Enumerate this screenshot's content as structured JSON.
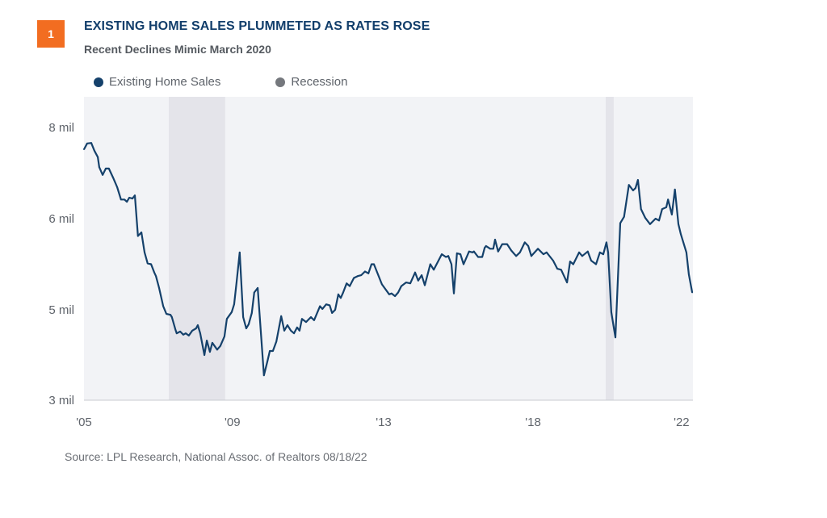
{
  "badge": "1",
  "title": "EXISTING HOME SALES PLUMMETED AS RATES ROSE",
  "subtitle": "Recent Declines Mimic March 2020",
  "source": "Source: LPL Research, National Assoc. of Realtors  08/18/22",
  "colors": {
    "series": "#15416b",
    "recession": "#e4e4ea",
    "recession_legend": "#75787d",
    "plot_bg": "#f2f3f6",
    "badge": "#f26d21"
  },
  "chart_data": {
    "type": "line",
    "title": "EXISTING HOME SALES PLUMMETED AS RATES ROSE",
    "subtitle": "Recent Declines Mimic March 2020",
    "legend": {
      "position": "top-left",
      "entries": [
        "Existing Home Sales",
        "Recession"
      ]
    },
    "grid": false,
    "xlim": [
      2005.0,
      2022.6
    ],
    "x_ticks": [
      {
        "value": 2005.0,
        "label": "'05"
      },
      {
        "value": 2009.29,
        "label": "'09"
      },
      {
        "value": 2013.66,
        "label": "'13"
      },
      {
        "value": 2017.98,
        "label": "'18"
      },
      {
        "value": 2022.27,
        "label": "'22"
      }
    ],
    "y_ticks": [
      {
        "value": 8,
        "label": "8 mil"
      },
      {
        "value": 6,
        "label": "6 mil"
      },
      {
        "value": 5,
        "label": "5 mil"
      },
      {
        "value": 3,
        "label": "3 mil"
      }
    ],
    "recessions": [
      [
        2007.45,
        2009.08
      ],
      [
        2020.08,
        2020.31
      ]
    ],
    "series": [
      {
        "name": "Existing Home Sales",
        "points": [
          [
            2005.0,
            7.52
          ],
          [
            2005.09,
            7.65
          ],
          [
            2005.21,
            7.66
          ],
          [
            2005.3,
            7.49
          ],
          [
            2005.4,
            7.35
          ],
          [
            2005.44,
            7.13
          ],
          [
            2005.54,
            6.96
          ],
          [
            2005.63,
            7.1
          ],
          [
            2005.72,
            7.1
          ],
          [
            2005.84,
            6.9
          ],
          [
            2005.96,
            6.69
          ],
          [
            2006.07,
            6.42
          ],
          [
            2006.17,
            6.42
          ],
          [
            2006.24,
            6.37
          ],
          [
            2006.31,
            6.46
          ],
          [
            2006.4,
            6.44
          ],
          [
            2006.47,
            6.51
          ],
          [
            2006.56,
            5.81
          ],
          [
            2006.66,
            5.85
          ],
          [
            2006.75,
            5.63
          ],
          [
            2006.84,
            5.51
          ],
          [
            2006.94,
            5.5
          ],
          [
            2007.03,
            5.41
          ],
          [
            2007.08,
            5.37
          ],
          [
            2007.17,
            5.24
          ],
          [
            2007.29,
            5.04
          ],
          [
            2007.38,
            4.91
          ],
          [
            2007.5,
            4.89
          ],
          [
            2007.54,
            4.84
          ],
          [
            2007.64,
            4.57
          ],
          [
            2007.68,
            4.48
          ],
          [
            2007.78,
            4.52
          ],
          [
            2007.87,
            4.45
          ],
          [
            2007.94,
            4.48
          ],
          [
            2008.03,
            4.43
          ],
          [
            2008.13,
            4.54
          ],
          [
            2008.24,
            4.59
          ],
          [
            2008.29,
            4.66
          ],
          [
            2008.36,
            4.48
          ],
          [
            2008.48,
            4.0
          ],
          [
            2008.55,
            4.32
          ],
          [
            2008.64,
            4.07
          ],
          [
            2008.71,
            4.27
          ],
          [
            2008.85,
            4.12
          ],
          [
            2008.94,
            4.2
          ],
          [
            2009.06,
            4.41
          ],
          [
            2009.13,
            4.8
          ],
          [
            2009.27,
            4.95
          ],
          [
            2009.34,
            5.06
          ],
          [
            2009.41,
            5.3
          ],
          [
            2009.5,
            5.63
          ],
          [
            2009.6,
            4.84
          ],
          [
            2009.69,
            4.59
          ],
          [
            2009.76,
            4.68
          ],
          [
            2009.85,
            4.93
          ],
          [
            2009.92,
            5.19
          ],
          [
            2010.02,
            5.24
          ],
          [
            2010.2,
            3.55
          ],
          [
            2010.3,
            3.86
          ],
          [
            2010.37,
            4.09
          ],
          [
            2010.46,
            4.09
          ],
          [
            2010.56,
            4.3
          ],
          [
            2010.7,
            4.86
          ],
          [
            2010.79,
            4.54
          ],
          [
            2010.88,
            4.66
          ],
          [
            2010.98,
            4.54
          ],
          [
            2011.07,
            4.48
          ],
          [
            2011.16,
            4.61
          ],
          [
            2011.23,
            4.54
          ],
          [
            2011.3,
            4.8
          ],
          [
            2011.42,
            4.73
          ],
          [
            2011.56,
            4.84
          ],
          [
            2011.65,
            4.77
          ],
          [
            2011.82,
            5.04
          ],
          [
            2011.89,
            5.01
          ],
          [
            2012.0,
            5.06
          ],
          [
            2012.1,
            5.05
          ],
          [
            2012.17,
            4.93
          ],
          [
            2012.26,
            5.0
          ],
          [
            2012.35,
            5.17
          ],
          [
            2012.42,
            5.13
          ],
          [
            2012.49,
            5.19
          ],
          [
            2012.59,
            5.29
          ],
          [
            2012.68,
            5.26
          ],
          [
            2012.8,
            5.35
          ],
          [
            2012.91,
            5.37
          ],
          [
            2013.01,
            5.38
          ],
          [
            2013.12,
            5.42
          ],
          [
            2013.22,
            5.4
          ],
          [
            2013.31,
            5.5
          ],
          [
            2013.38,
            5.5
          ],
          [
            2013.61,
            5.28
          ],
          [
            2013.82,
            5.17
          ],
          [
            2013.89,
            5.18
          ],
          [
            2013.99,
            5.15
          ],
          [
            2014.08,
            5.19
          ],
          [
            2014.17,
            5.26
          ],
          [
            2014.31,
            5.3
          ],
          [
            2014.43,
            5.29
          ],
          [
            2014.57,
            5.41
          ],
          [
            2014.66,
            5.32
          ],
          [
            2014.76,
            5.38
          ],
          [
            2014.85,
            5.27
          ],
          [
            2015.01,
            5.5
          ],
          [
            2015.11,
            5.44
          ],
          [
            2015.34,
            5.61
          ],
          [
            2015.46,
            5.58
          ],
          [
            2015.53,
            5.59
          ],
          [
            2015.62,
            5.5
          ],
          [
            2015.69,
            5.18
          ],
          [
            2015.78,
            5.62
          ],
          [
            2015.88,
            5.61
          ],
          [
            2015.97,
            5.5
          ],
          [
            2016.13,
            5.64
          ],
          [
            2016.23,
            5.63
          ],
          [
            2016.27,
            5.64
          ],
          [
            2016.39,
            5.58
          ],
          [
            2016.51,
            5.58
          ],
          [
            2016.58,
            5.68
          ],
          [
            2016.62,
            5.7
          ],
          [
            2016.74,
            5.67
          ],
          [
            2016.83,
            5.67
          ],
          [
            2016.88,
            5.77
          ],
          [
            2016.97,
            5.64
          ],
          [
            2017.09,
            5.72
          ],
          [
            2017.23,
            5.72
          ],
          [
            2017.35,
            5.65
          ],
          [
            2017.49,
            5.59
          ],
          [
            2017.6,
            5.63
          ],
          [
            2017.74,
            5.74
          ],
          [
            2017.84,
            5.7
          ],
          [
            2017.93,
            5.59
          ],
          [
            2018.12,
            5.67
          ],
          [
            2018.28,
            5.61
          ],
          [
            2018.37,
            5.63
          ],
          [
            2018.56,
            5.54
          ],
          [
            2018.68,
            5.45
          ],
          [
            2018.79,
            5.44
          ],
          [
            2018.96,
            5.3
          ],
          [
            2019.05,
            5.53
          ],
          [
            2019.14,
            5.5
          ],
          [
            2019.31,
            5.63
          ],
          [
            2019.4,
            5.59
          ],
          [
            2019.56,
            5.64
          ],
          [
            2019.66,
            5.54
          ],
          [
            2019.8,
            5.5
          ],
          [
            2019.91,
            5.63
          ],
          [
            2020.01,
            5.61
          ],
          [
            2020.1,
            5.74
          ],
          [
            2020.15,
            5.63
          ],
          [
            2020.24,
            4.95
          ],
          [
            2020.36,
            4.39
          ],
          [
            2020.5,
            5.95
          ],
          [
            2020.61,
            6.04
          ],
          [
            2020.75,
            6.74
          ],
          [
            2020.87,
            6.62
          ],
          [
            2020.94,
            6.67
          ],
          [
            2021.01,
            6.85
          ],
          [
            2021.1,
            6.21
          ],
          [
            2021.22,
            6.02
          ],
          [
            2021.36,
            5.94
          ],
          [
            2021.52,
            6.0
          ],
          [
            2021.62,
            5.98
          ],
          [
            2021.71,
            6.21
          ],
          [
            2021.83,
            6.25
          ],
          [
            2021.88,
            6.42
          ],
          [
            2021.99,
            6.09
          ],
          [
            2022.08,
            6.64
          ],
          [
            2022.18,
            5.94
          ],
          [
            2022.25,
            5.83
          ],
          [
            2022.41,
            5.63
          ],
          [
            2022.48,
            5.39
          ],
          [
            2022.58,
            5.19
          ]
        ]
      }
    ]
  }
}
